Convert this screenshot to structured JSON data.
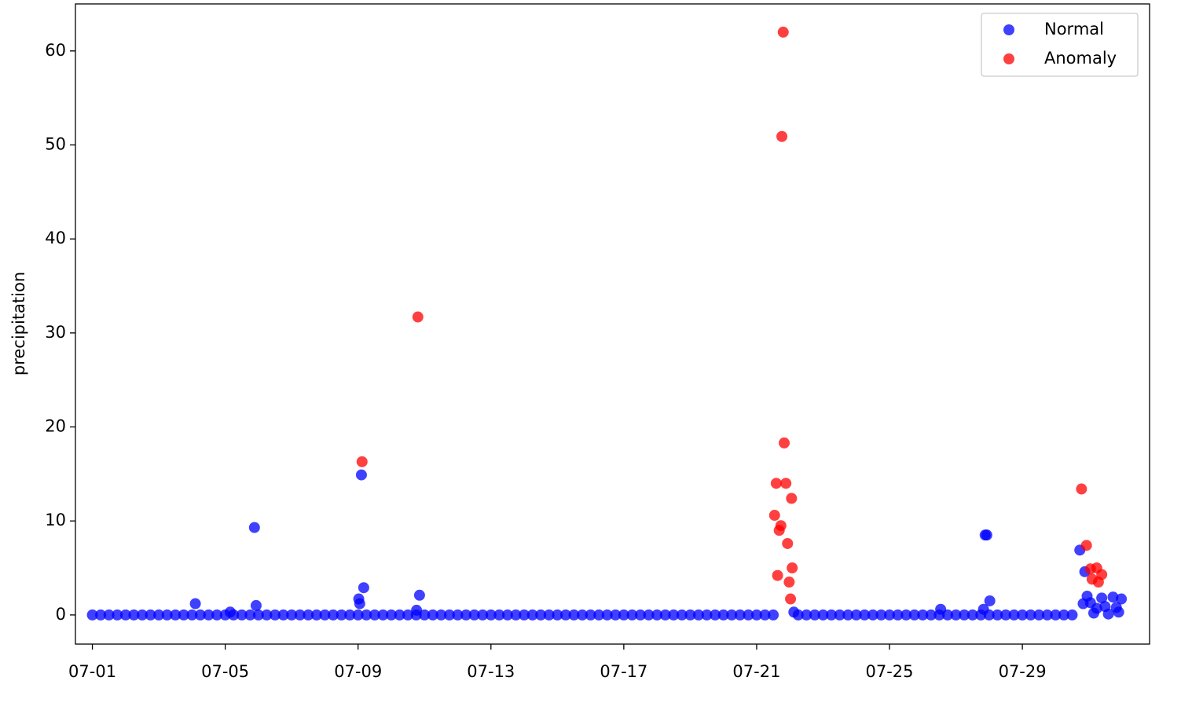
{
  "chart_data": {
    "type": "scatter",
    "ylabel": "precipitation",
    "xlim": [
      0.49,
      32.83
    ],
    "ylim": [
      -3.1,
      65
    ],
    "xticks": [
      {
        "value": 1,
        "label": "07-01"
      },
      {
        "value": 5,
        "label": "07-05"
      },
      {
        "value": 9,
        "label": "07-09"
      },
      {
        "value": 13,
        "label": "07-13"
      },
      {
        "value": 17,
        "label": "07-17"
      },
      {
        "value": 21,
        "label": "07-21"
      },
      {
        "value": 25,
        "label": "07-25"
      },
      {
        "value": 29,
        "label": "07-29"
      }
    ],
    "yticks": [
      0,
      10,
      20,
      30,
      40,
      50,
      60
    ],
    "legend": "upper right",
    "series": [
      {
        "name": "Normal",
        "color": "#0000ff",
        "x": [
          1,
          1.25,
          1.5,
          1.75,
          2,
          2.25,
          2.5,
          2.75,
          3,
          3.25,
          3.5,
          3.75,
          4,
          4.25,
          4.5,
          4.75,
          5,
          5.25,
          5.5,
          5.75,
          6,
          6.25,
          6.5,
          6.75,
          7,
          7.25,
          7.5,
          7.75,
          8,
          8.25,
          8.5,
          8.75,
          9,
          9.25,
          9.5,
          9.75,
          10,
          10.25,
          10.5,
          10.75,
          11,
          11.25,
          11.5,
          11.75,
          12,
          12.25,
          12.5,
          12.75,
          13,
          13.25,
          13.5,
          13.75,
          14,
          14.25,
          14.5,
          14.75,
          15,
          15.25,
          15.5,
          15.75,
          16,
          16.25,
          16.5,
          16.75,
          17,
          17.25,
          17.5,
          17.75,
          18,
          18.25,
          18.5,
          18.75,
          19,
          19.25,
          19.5,
          19.75,
          20,
          20.25,
          20.5,
          20.75,
          21,
          21.25,
          21.5,
          22.25,
          22.5,
          22.75,
          23,
          23.25,
          23.5,
          23.75,
          24,
          24.25,
          24.5,
          24.75,
          25,
          25.25,
          25.5,
          25.75,
          26,
          26.25,
          26.5,
          26.75,
          27,
          27.25,
          27.5,
          27.75,
          28,
          28.25,
          28.5,
          28.75,
          29,
          29.25,
          29.5,
          29.75,
          30,
          30.25,
          30.5,
          4.1,
          5.15,
          5.88,
          5.93,
          9.02,
          9.05,
          9.1,
          9.17,
          10.76,
          10.85,
          22.12,
          26.54,
          27.88,
          27.93,
          27.83,
          28.02,
          30.73,
          30.83,
          30.88,
          30.95,
          31.05,
          31.15,
          31.24,
          31.39,
          31.49,
          31.59,
          31.73,
          31.83,
          31.9,
          31.98
        ],
        "values": [
          0,
          0,
          0,
          0,
          0,
          0,
          0,
          0,
          0,
          0,
          0,
          0,
          0,
          0,
          0,
          0,
          0,
          0,
          0,
          0,
          0,
          0,
          0,
          0,
          0,
          0,
          0,
          0,
          0,
          0,
          0,
          0,
          0,
          0,
          0,
          0,
          0,
          0,
          0,
          0,
          0,
          0,
          0,
          0,
          0,
          0,
          0,
          0,
          0,
          0,
          0,
          0,
          0,
          0,
          0,
          0,
          0,
          0,
          0,
          0,
          0,
          0,
          0,
          0,
          0,
          0,
          0,
          0,
          0,
          0,
          0,
          0,
          0,
          0,
          0,
          0,
          0,
          0,
          0,
          0,
          0,
          0,
          0,
          0,
          0,
          0,
          0,
          0,
          0,
          0,
          0,
          0,
          0,
          0,
          0,
          0,
          0,
          0,
          0,
          0,
          0,
          0,
          0,
          0,
          0,
          0,
          0,
          0,
          0,
          0,
          0,
          0,
          0,
          0,
          0,
          0,
          0,
          1.2,
          0.3,
          9.3,
          1.0,
          1.7,
          1.2,
          14.9,
          2.9,
          0.5,
          2.1,
          0.3,
          0.6,
          8.5,
          8.5,
          0.6,
          1.5,
          6.9,
          1.2,
          4.6,
          2.0,
          1.3,
          0.2,
          0.7,
          1.8,
          0.9,
          0.1,
          1.9,
          0.8,
          0.3,
          1.7
        ]
      },
      {
        "name": "Anomaly",
        "color": "#ff0000",
        "x": [
          9.12,
          10.8,
          21.54,
          21.59,
          21.63,
          21.68,
          21.73,
          21.76,
          21.8,
          21.83,
          21.88,
          21.93,
          21.98,
          22.02,
          22.05,
          22.07,
          30.78,
          30.93,
          31.05,
          31.1,
          31.24,
          31.29,
          31.39
        ],
        "values": [
          16.3,
          31.7,
          10.6,
          14.0,
          4.2,
          9.0,
          9.5,
          50.9,
          62.0,
          18.3,
          14.0,
          7.6,
          3.5,
          1.7,
          12.4,
          5.0,
          13.4,
          7.4,
          4.9,
          3.8,
          5.0,
          3.5,
          4.3
        ]
      }
    ]
  }
}
